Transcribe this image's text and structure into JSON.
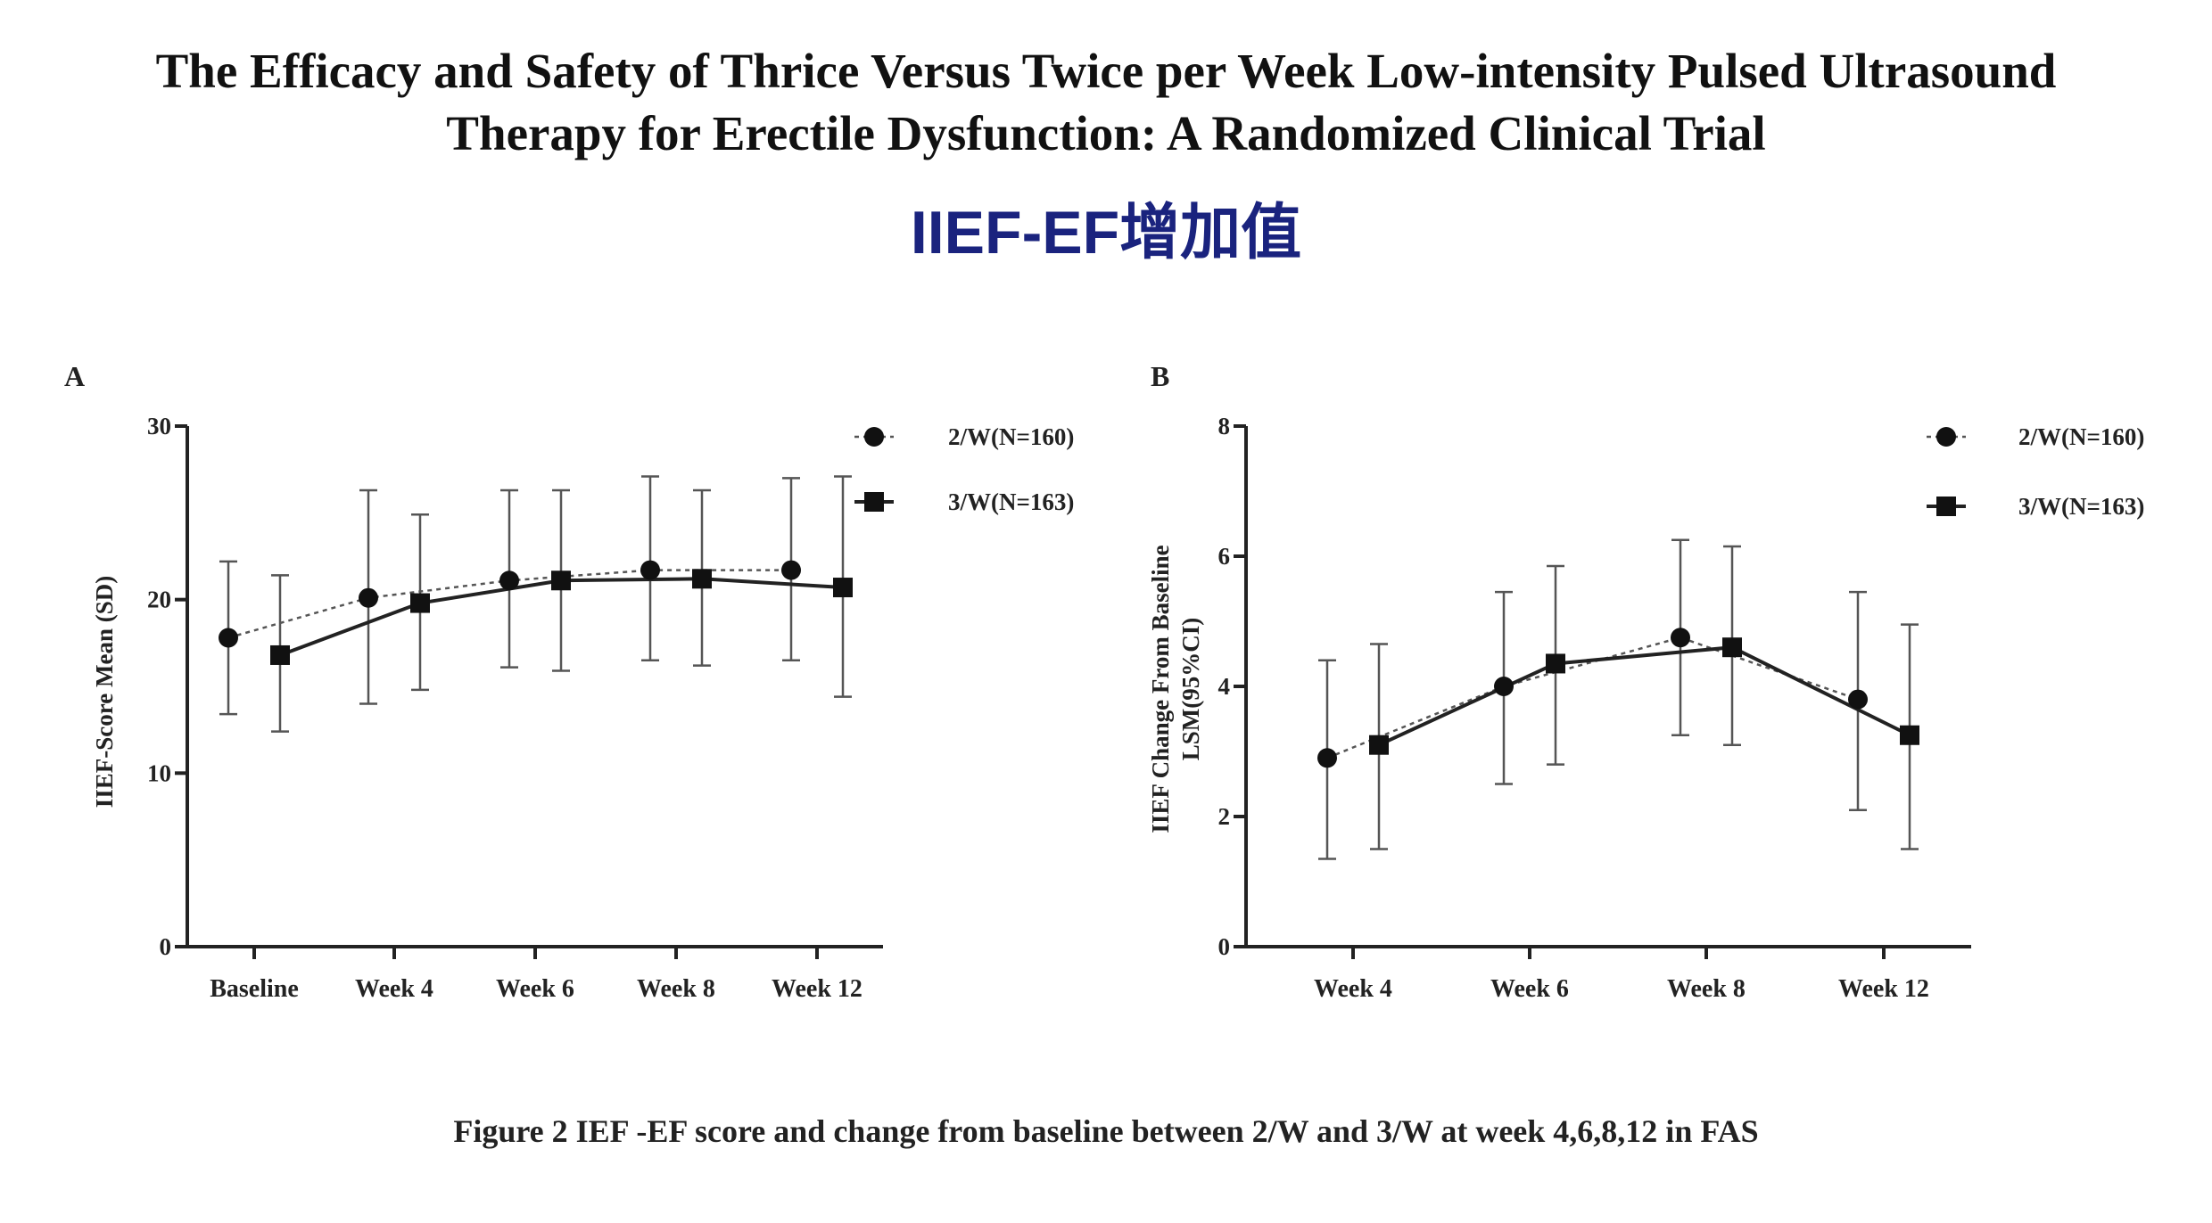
{
  "slide": {
    "title_line1": "The Efficacy and Safety of Thrice Versus Twice per Week Low-intensity Pulsed Ultrasound",
    "title_line2": "Therapy for Erectile Dysfunction: A Randomized Clinical Trial",
    "subtitle": "IIEF-EF增加值",
    "caption": "Figure 2 IEF -EF score and change from baseline between 2/W and 3/W at week 4,6,8,12 in FAS",
    "subtitle_color": "#1a237e"
  },
  "chart_data": [
    {
      "panel_label": "A",
      "type": "line",
      "categories": [
        "Baseline",
        "Week 4",
        "Week 6",
        "Week 8",
        "Week 12"
      ],
      "ylabel": "IIEF-Score Mean (SD)",
      "xlabel": "",
      "ylim": [
        0,
        30
      ],
      "yticks": [
        0,
        10,
        20,
        30
      ],
      "error_bars": "SD",
      "grid": false,
      "legend_position": "top-right",
      "series": [
        {
          "name": "2/W(N=160)",
          "marker": "circle",
          "line_style": "dotted",
          "values": [
            17.8,
            20.1,
            21.1,
            21.7,
            21.7
          ],
          "err_low": [
            13.4,
            14.0,
            16.1,
            16.5,
            16.5
          ],
          "err_high": [
            22.2,
            26.3,
            26.3,
            27.1,
            27.0
          ]
        },
        {
          "name": "3/W(N=163)",
          "marker": "square",
          "line_style": "solid",
          "values": [
            16.8,
            19.8,
            21.1,
            21.2,
            20.7
          ],
          "err_low": [
            12.4,
            14.8,
            15.9,
            16.2,
            14.4
          ],
          "err_high": [
            21.4,
            24.9,
            26.3,
            26.3,
            27.1
          ]
        }
      ]
    },
    {
      "panel_label": "B",
      "type": "line",
      "categories": [
        "Week 4",
        "Week 6",
        "Week 8",
        "Week 12"
      ],
      "ylabel": "IIEF Change From Baseline LSM(95%CI)",
      "xlabel": "",
      "ylim": [
        0,
        8
      ],
      "yticks": [
        0,
        2,
        4,
        6,
        8
      ],
      "error_bars": "95% CI",
      "grid": false,
      "legend_position": "top-right",
      "series": [
        {
          "name": "2/W(N=160)",
          "marker": "circle",
          "line_style": "dotted",
          "values": [
            2.9,
            4.0,
            4.75,
            3.8
          ],
          "err_low": [
            1.35,
            2.5,
            3.25,
            2.1
          ],
          "err_high": [
            4.4,
            5.45,
            6.25,
            5.45
          ]
        },
        {
          "name": "3/W(N=163)",
          "marker": "square",
          "line_style": "solid",
          "values": [
            3.1,
            4.35,
            4.6,
            3.25
          ],
          "err_low": [
            1.5,
            2.8,
            3.1,
            1.5
          ],
          "err_high": [
            4.65,
            5.85,
            6.15,
            4.95
          ]
        }
      ]
    }
  ]
}
